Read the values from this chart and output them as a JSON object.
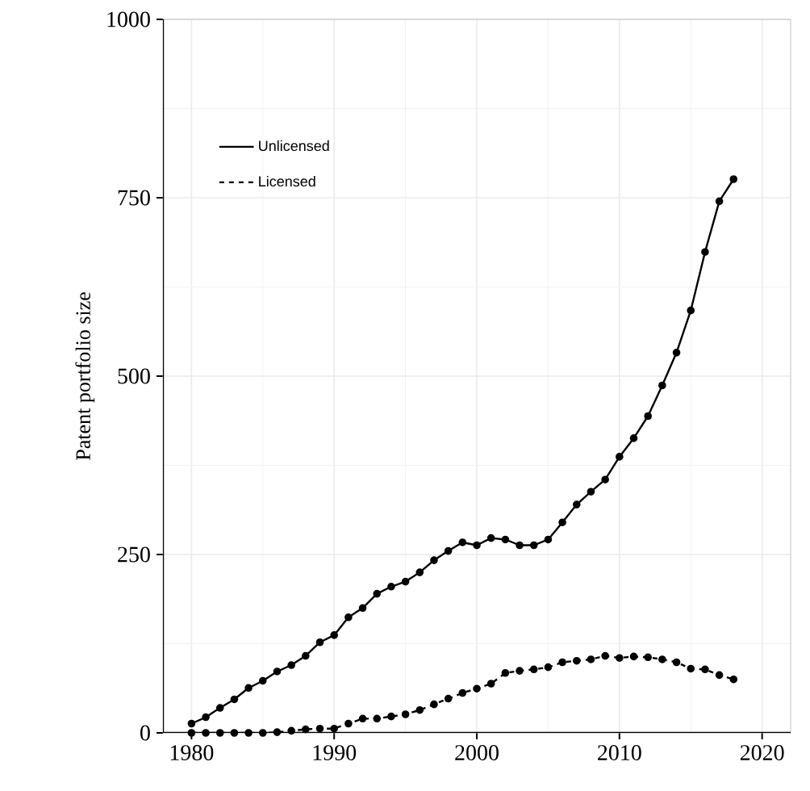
{
  "chart_data": {
    "type": "line",
    "ylabel": "Patent portfolio size",
    "x": [
      1980,
      1981,
      1982,
      1983,
      1984,
      1985,
      1986,
      1987,
      1988,
      1989,
      1990,
      1991,
      1992,
      1993,
      1994,
      1995,
      1996,
      1997,
      1998,
      1999,
      2000,
      2001,
      2002,
      2003,
      2004,
      2005,
      2006,
      2007,
      2008,
      2009,
      2010,
      2011,
      2012,
      2013,
      2014,
      2015,
      2016,
      2017,
      2018
    ],
    "series": [
      {
        "name": "Unlicensed",
        "color": "#000000",
        "line_style": "solid",
        "values": [
          13,
          22,
          35,
          47,
          63,
          73,
          86,
          95,
          108,
          127,
          137,
          162,
          175,
          195,
          205,
          212,
          225,
          242,
          255,
          267,
          263,
          273,
          271,
          263,
          263,
          271,
          295,
          320,
          338,
          355,
          387,
          413,
          444,
          487,
          533,
          592,
          674,
          745,
          776
        ]
      },
      {
        "name": "Licensed",
        "color": "#000000",
        "line_style": "dashed",
        "values": [
          0,
          0,
          0,
          0,
          0,
          0,
          1,
          3,
          5,
          6,
          6,
          13,
          20,
          20,
          23,
          26,
          32,
          40,
          48,
          56,
          62,
          69,
          84,
          87,
          89,
          92,
          99,
          101,
          103,
          108,
          105,
          107,
          106,
          103,
          99,
          90,
          89,
          81,
          75
        ]
      }
    ],
    "xlim": [
      1978,
      2022
    ],
    "xticks": [
      1980,
      1990,
      2000,
      2010,
      2020
    ],
    "ylim": [
      0,
      1000
    ],
    "yticks": [
      0,
      250,
      500,
      750,
      1000
    ],
    "grid": true,
    "legend": "top left",
    "marker": "circle"
  }
}
